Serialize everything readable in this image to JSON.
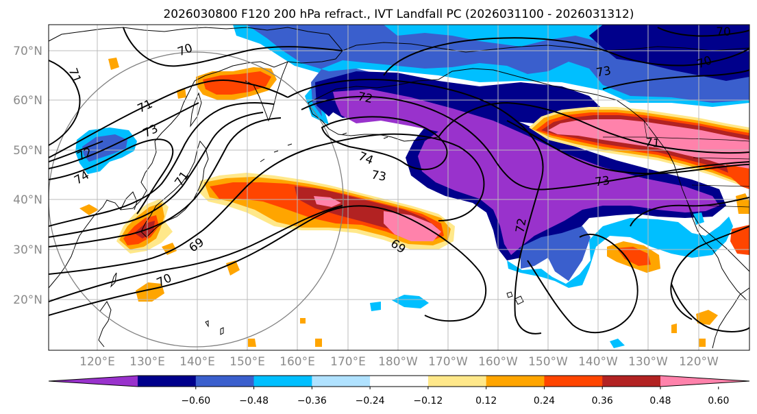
{
  "title": "2026030800 F120 200 hPa refract., IVT Landfall PC (2026031100 - 2026031312)",
  "map": {
    "lat_labels": [
      "70°N",
      "60°N",
      "50°N",
      "40°N",
      "30°N",
      "20°N"
    ],
    "lon_labels": [
      "120°E",
      "130°E",
      "140°E",
      "150°E",
      "160°E",
      "170°E",
      "180°W",
      "170°W",
      "160°W",
      "150°W",
      "140°W",
      "130°W",
      "120°W"
    ],
    "contour_labels": [
      "70",
      "71",
      "71",
      "71",
      "72",
      "72",
      "72",
      "73",
      "73",
      "73",
      "74",
      "74",
      "69",
      "69",
      "70",
      "71",
      "73",
      "70",
      "70"
    ]
  },
  "colorbar": {
    "ticks": [
      "−0.60",
      "−0.48",
      "−0.36",
      "−0.24",
      "−0.12",
      "0.12",
      "0.24",
      "0.36",
      "0.48",
      "0.60"
    ],
    "colors": [
      "#9932cc",
      "#00008b",
      "#3a5fcd",
      "#00bfff",
      "#b0e2ff",
      "#ffffff",
      "#ffe88a",
      "#ffa500",
      "#ff4500",
      "#b22222",
      "#ff82ab"
    ]
  },
  "palette": {
    "purple": "#9932cc",
    "navy": "#00008b",
    "blue": "#3a5fcd",
    "cyan": "#00bfff",
    "lightblue": "#b0e2ff",
    "yellow": "#ffe88a",
    "orange": "#ffa500",
    "red": "#ff4500",
    "darkred": "#b22222",
    "pink": "#ff82ab"
  }
}
